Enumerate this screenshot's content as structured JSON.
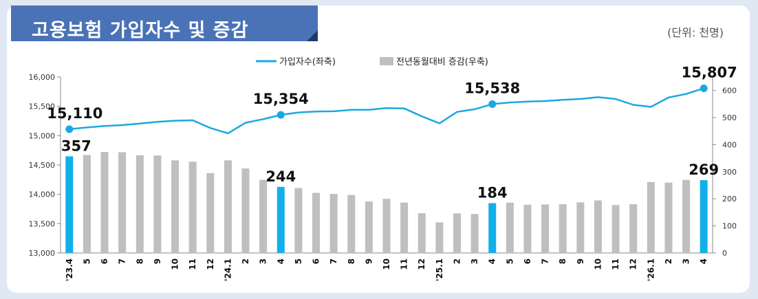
{
  "header": {
    "title": "고용보험 가입자수 및 증감",
    "unit": "(단위: 천명)"
  },
  "colors": {
    "line": "#1ba8e0",
    "bar": "#bfbfbf",
    "highlight_bar": "#12b0ea",
    "title_bg": "#4a72b6"
  },
  "chart_data": {
    "type": "bar",
    "categories": [
      "'23.4",
      "5",
      "6",
      "7",
      "8",
      "9",
      "10",
      "11",
      "12",
      "'24.1",
      "2",
      "3",
      "4",
      "5",
      "6",
      "7",
      "8",
      "9",
      "10",
      "11",
      "12",
      "'25.1",
      "2",
      "3",
      "4",
      "5",
      "6",
      "7",
      "8",
      "9",
      "10",
      "11",
      "12",
      "'26.1",
      "2",
      "3",
      "4"
    ],
    "series": [
      {
        "name": "가입자수(좌축)",
        "type": "line",
        "axis": "left",
        "values": [
          15110,
          15140,
          15165,
          15180,
          15205,
          15235,
          15255,
          15262,
          15130,
          15040,
          15220,
          15280,
          15354,
          15395,
          15410,
          15415,
          15440,
          15440,
          15470,
          15465,
          15330,
          15210,
          15405,
          15450,
          15538,
          15565,
          15580,
          15590,
          15610,
          15625,
          15655,
          15625,
          15525,
          15490,
          15650,
          15710,
          15807
        ]
      },
      {
        "name": "전년동월대비 증감(우축)",
        "type": "bar",
        "axis": "right",
        "values": [
          357,
          362,
          373,
          372,
          361,
          360,
          342,
          337,
          295,
          342,
          312,
          270,
          244,
          240,
          222,
          218,
          214,
          190,
          200,
          186,
          147,
          113,
          146,
          144,
          184,
          186,
          178,
          179,
          180,
          187,
          194,
          177,
          180,
          262,
          260,
          270,
          269
        ]
      }
    ],
    "highlight_indices": [
      0,
      12,
      24,
      36
    ],
    "line_labels": [
      "15,110",
      "15,354",
      "15,538",
      "15,807"
    ],
    "bar_labels": [
      "357",
      "244",
      "184",
      "269"
    ],
    "y_left": {
      "range": [
        13000,
        16000
      ],
      "ticks": [
        "13,000",
        "13,500",
        "14,000",
        "14,500",
        "15,000",
        "15,500",
        "16,000"
      ]
    },
    "y_right": {
      "range": [
        0,
        650
      ],
      "ticks": [
        "0",
        "100",
        "200",
        "300",
        "400",
        "500",
        "600"
      ]
    },
    "legend": {
      "position": "top-center"
    },
    "grid": false
  }
}
